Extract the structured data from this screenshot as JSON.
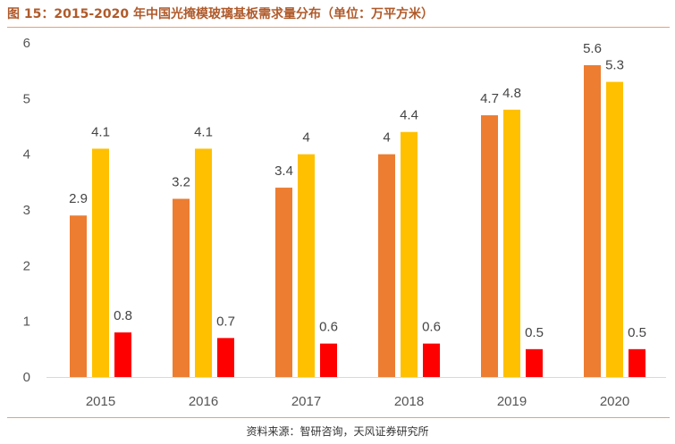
{
  "figure": {
    "title": "图 15：2015-2020 年中国光掩模玻璃基板需求量分布（单位：万平方米）",
    "source": "资料来源：智研咨询，天风证券研究所"
  },
  "chart_data": {
    "type": "bar",
    "categories": [
      "2015",
      "2016",
      "2017",
      "2018",
      "2019",
      "2020"
    ],
    "series": [
      {
        "values": [
          2.9,
          3.2,
          3.4,
          4,
          4.7,
          5.6
        ],
        "color": "#ED7D31"
      },
      {
        "values": [
          4.1,
          4.1,
          4,
          4.4,
          4.8,
          5.3
        ],
        "color": "#FFC000"
      },
      {
        "values": [
          0.8,
          0.7,
          0.6,
          0.6,
          0.5,
          0.5
        ],
        "color": "#FF0000"
      }
    ],
    "y_ticks": [
      "0",
      "1",
      "2",
      "3",
      "4",
      "5",
      "6"
    ],
    "ylim": [
      0,
      6
    ],
    "grid": false,
    "legend": "none"
  }
}
